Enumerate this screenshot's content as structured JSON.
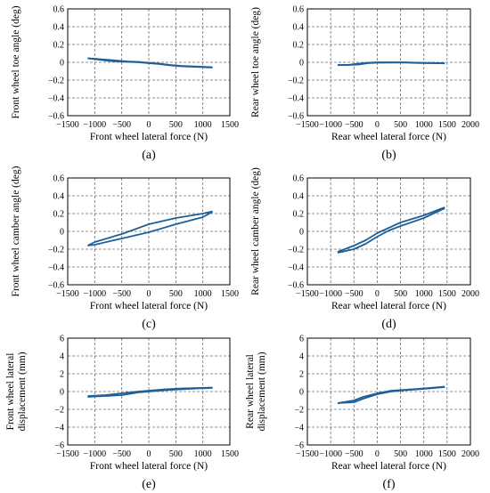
{
  "colors": {
    "series": "#1f5f99",
    "grid": "#6e6e6e",
    "axis": "#000000"
  },
  "chart_data": [
    {
      "type": "line",
      "panel_label": "(a)",
      "xlabel": "Front wheel lateral force (N)",
      "ylabel": "Front wheel toe angle (deg)",
      "xlim": [
        -1500,
        1500
      ],
      "ylim": [
        -0.6,
        0.6
      ],
      "grid": true,
      "xticks": [
        "−1500",
        "−1000",
        "−500",
        "0",
        "500",
        "1000",
        "1500"
      ],
      "yticks": [
        "−0.6",
        "−0.4",
        "−0.2",
        "0",
        "0.2",
        "0.4",
        "0.6"
      ],
      "series": [
        {
          "x": [
            -1130,
            -1000,
            -800,
            -600,
            -400,
            -200,
            0,
            200,
            400,
            600,
            800,
            1000,
            1180
          ],
          "y": [
            0.045,
            0.04,
            0.03,
            0.02,
            0.01,
            0.005,
            -0.005,
            -0.015,
            -0.03,
            -0.04,
            -0.045,
            -0.05,
            -0.055
          ]
        },
        {
          "x": [
            -1130,
            -1000,
            -800,
            -600,
            -400,
            -200,
            0,
            200,
            400,
            600,
            800,
            1000,
            1180
          ],
          "y": [
            0.045,
            0.035,
            0.02,
            0.01,
            0.005,
            0.0,
            -0.01,
            -0.02,
            -0.035,
            -0.045,
            -0.05,
            -0.055,
            -0.06
          ]
        }
      ]
    },
    {
      "type": "line",
      "panel_label": "(b)",
      "xlabel": "Rear wheel lateral force (N)",
      "ylabel": "Rear wheel toe angle (deg)",
      "xlim": [
        -1500,
        2000
      ],
      "ylim": [
        -0.6,
        0.6
      ],
      "grid": true,
      "xticks": [
        "−1500",
        "−1000",
        "−500",
        "0",
        "500",
        "1000",
        "1500",
        "2000"
      ],
      "yticks": [
        "−0.6",
        "−0.4",
        "−0.2",
        "0",
        "0.2",
        "0.4",
        "0.6"
      ],
      "series": [
        {
          "x": [
            -850,
            -600,
            -400,
            -200,
            0,
            300,
            600,
            900,
            1200,
            1450
          ],
          "y": [
            -0.03,
            -0.028,
            -0.015,
            -0.005,
            0.0,
            0.0,
            0.0,
            -0.005,
            -0.008,
            -0.01
          ]
        },
        {
          "x": [
            -850,
            -600,
            -400,
            -200,
            0,
            300,
            600,
            900,
            1200,
            1450
          ],
          "y": [
            -0.032,
            -0.03,
            -0.025,
            -0.01,
            -0.005,
            -0.003,
            -0.003,
            -0.008,
            -0.01,
            -0.012
          ]
        }
      ]
    },
    {
      "type": "line",
      "panel_label": "(c)",
      "xlabel": "Front wheel lateral force (N)",
      "ylabel": "Front wheel camber angle (deg)",
      "xlim": [
        -1500,
        1500
      ],
      "ylim": [
        -0.6,
        0.6
      ],
      "grid": true,
      "xticks": [
        "−1500",
        "−1000",
        "−500",
        "0",
        "500",
        "1000",
        "1500"
      ],
      "yticks": [
        "−0.6",
        "−0.4",
        "−0.2",
        "0",
        "0.2",
        "0.4",
        "0.6"
      ],
      "series": [
        {
          "x": [
            -1130,
            -1000,
            -500,
            0,
            500,
            1000,
            1180
          ],
          "y": [
            -0.16,
            -0.12,
            -0.03,
            0.08,
            0.15,
            0.2,
            0.225
          ]
        },
        {
          "x": [
            -1130,
            -1000,
            -500,
            0,
            500,
            1000,
            1180
          ],
          "y": [
            -0.16,
            -0.15,
            -0.08,
            -0.01,
            0.08,
            0.16,
            0.22
          ]
        }
      ]
    },
    {
      "type": "line",
      "panel_label": "(d)",
      "xlabel": "Rear wheel lateral force (N)",
      "ylabel": "Rear wheel camber angle (deg)",
      "xlim": [
        -1500,
        2000
      ],
      "ylim": [
        -0.6,
        0.6
      ],
      "grid": true,
      "xticks": [
        "−1500",
        "−1000",
        "−500",
        "0",
        "500",
        "1000",
        "1500",
        "2000"
      ],
      "yticks": [
        "−0.6",
        "−0.4",
        "−0.2",
        "0",
        "0.2",
        "0.4",
        "0.6"
      ],
      "series": [
        {
          "x": [
            -850,
            -500,
            -250,
            0,
            250,
            500,
            1000,
            1450
          ],
          "y": [
            -0.23,
            -0.16,
            -0.1,
            -0.02,
            0.04,
            0.1,
            0.18,
            0.27
          ]
        },
        {
          "x": [
            -850,
            -500,
            -250,
            0,
            250,
            500,
            1000,
            1450
          ],
          "y": [
            -0.24,
            -0.2,
            -0.14,
            -0.06,
            0.01,
            0.06,
            0.15,
            0.26
          ]
        }
      ]
    },
    {
      "type": "line",
      "panel_label": "(e)",
      "xlabel": "Front wheel lateral force (N)",
      "ylabel": "Front wheel lateral displacement (mm)",
      "ylabel_lines": [
        "Front wheel lateral",
        "displacement (mm)"
      ],
      "xlim": [
        -1500,
        1500
      ],
      "ylim": [
        -6,
        6
      ],
      "grid": true,
      "xticks": [
        "−1500",
        "−1000",
        "−500",
        "0",
        "500",
        "1000",
        "1500"
      ],
      "yticks": [
        "−6",
        "−4",
        "−2",
        "0",
        "2",
        "4",
        "6"
      ],
      "series": [
        {
          "x": [
            -1130,
            -800,
            -500,
            -200,
            0,
            300,
            600,
            900,
            1180
          ],
          "y": [
            -0.5,
            -0.4,
            -0.2,
            0.0,
            0.1,
            0.25,
            0.35,
            0.4,
            0.45
          ]
        },
        {
          "x": [
            -1130,
            -800,
            -500,
            -200,
            0,
            300,
            600,
            900,
            1180
          ],
          "y": [
            -0.6,
            -0.5,
            -0.4,
            -0.1,
            0.0,
            0.15,
            0.25,
            0.35,
            0.4
          ]
        }
      ]
    },
    {
      "type": "line",
      "panel_label": "(f)",
      "xlabel": "Rear wheel lateral force (N)",
      "ylabel": "Rear wheel lateral displacement (mm)",
      "ylabel_lines": [
        "Rear wheel lateral",
        "displacement (mm)"
      ],
      "xlim": [
        -1500,
        2000
      ],
      "ylim": [
        -6,
        6
      ],
      "grid": true,
      "xticks": [
        "−1500",
        "−1000",
        "−500",
        "0",
        "500",
        "1000",
        "1500",
        "2000"
      ],
      "yticks": [
        "−6",
        "−4",
        "−2",
        "0",
        "2",
        "4",
        "6"
      ],
      "series": [
        {
          "x": [
            -850,
            -500,
            -300,
            0,
            300,
            600,
            1000,
            1450
          ],
          "y": [
            -1.3,
            -1.0,
            -0.6,
            -0.2,
            0.1,
            0.2,
            0.35,
            0.55
          ]
        },
        {
          "x": [
            -850,
            -500,
            -300,
            0,
            300,
            600,
            1000,
            1450
          ],
          "y": [
            -1.3,
            -1.2,
            -0.8,
            -0.3,
            0.0,
            0.15,
            0.3,
            0.5
          ]
        }
      ]
    }
  ]
}
